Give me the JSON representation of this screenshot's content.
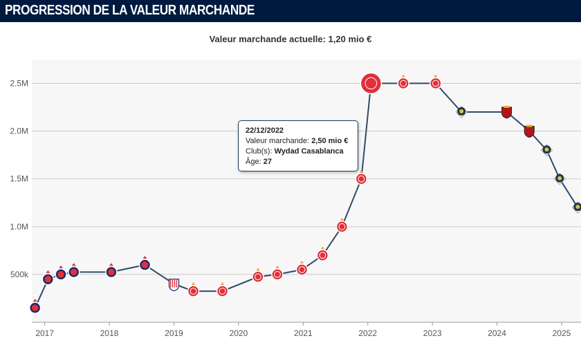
{
  "header": {
    "title": "PROGRESSION DE LA VALEUR MARCHANDE"
  },
  "current_value": {
    "label": "Valeur marchande actuelle:",
    "value": "1,20 mio €"
  },
  "tooltip": {
    "date": "22/12/2022",
    "value_label": "Valeur marchande:",
    "value": "2,50 mio €",
    "club_label": "Club(s):",
    "club": "Wydad Casablanca",
    "age_label": "Âge:",
    "age": "27"
  },
  "colors": {
    "line": "#2e4a6b",
    "grid": "#c8c8c8",
    "plot_bg": "#f7f7f7",
    "club_blue": "#1b2b6b",
    "club_red": "#e0303a",
    "club_navy": "#1a3550",
    "club_darkred": "#b01818"
  },
  "chart_data": {
    "type": "line",
    "title": "",
    "xlabel": "",
    "ylabel": "",
    "y_tick_labels": [
      "500k",
      "1.0M",
      "1.5M",
      "2.0M",
      "2.5M"
    ],
    "y_ticks": [
      500000,
      1000000,
      1500000,
      2000000,
      2500000
    ],
    "x_tick_labels": [
      "2017",
      "2018",
      "2019",
      "2020",
      "2021",
      "2022",
      "2023",
      "2024",
      "2025"
    ],
    "x_ticks": [
      2017,
      2018,
      2019,
      2020,
      2021,
      2022,
      2023,
      2024,
      2025
    ],
    "ylim": [
      0,
      2750000
    ],
    "xlim": [
      2016.8,
      2025.3
    ],
    "grid": true,
    "series": [
      {
        "points": [
          {
            "x": 2016.85,
            "y": 150000,
            "club": "blue"
          },
          {
            "x": 2017.05,
            "y": 450000,
            "club": "blue"
          },
          {
            "x": 2017.25,
            "y": 500000,
            "club": "blue"
          },
          {
            "x": 2017.45,
            "y": 525000,
            "club": "blue"
          },
          {
            "x": 2018.03,
            "y": 525000,
            "club": "blue"
          },
          {
            "x": 2018.55,
            "y": 600000,
            "club": "blue"
          },
          {
            "x": 2019.0,
            "y": 400000,
            "club": "striped"
          },
          {
            "x": 2019.3,
            "y": 325000,
            "club": "red"
          },
          {
            "x": 2019.75,
            "y": 325000,
            "club": "red"
          },
          {
            "x": 2020.3,
            "y": 475000,
            "club": "red"
          },
          {
            "x": 2020.6,
            "y": 500000,
            "club": "red"
          },
          {
            "x": 2020.98,
            "y": 550000,
            "club": "red"
          },
          {
            "x": 2021.3,
            "y": 700000,
            "club": "red"
          },
          {
            "x": 2021.6,
            "y": 1000000,
            "club": "red"
          },
          {
            "x": 2021.9,
            "y": 1500000,
            "club": "red"
          },
          {
            "x": 2022.05,
            "y": 2500000,
            "club": "red",
            "highlight": true
          },
          {
            "x": 2022.55,
            "y": 2500000,
            "club": "red"
          },
          {
            "x": 2023.05,
            "y": 2500000,
            "club": "red"
          },
          {
            "x": 2023.45,
            "y": 2200000,
            "club": "navy"
          },
          {
            "x": 2024.15,
            "y": 2200000,
            "club": "darkred"
          },
          {
            "x": 2024.5,
            "y": 2000000,
            "club": "darkred"
          },
          {
            "x": 2024.77,
            "y": 1800000,
            "club": "navy"
          },
          {
            "x": 2024.97,
            "y": 1500000,
            "club": "navy"
          },
          {
            "x": 2025.25,
            "y": 1200000,
            "club": "navy"
          }
        ]
      }
    ]
  }
}
